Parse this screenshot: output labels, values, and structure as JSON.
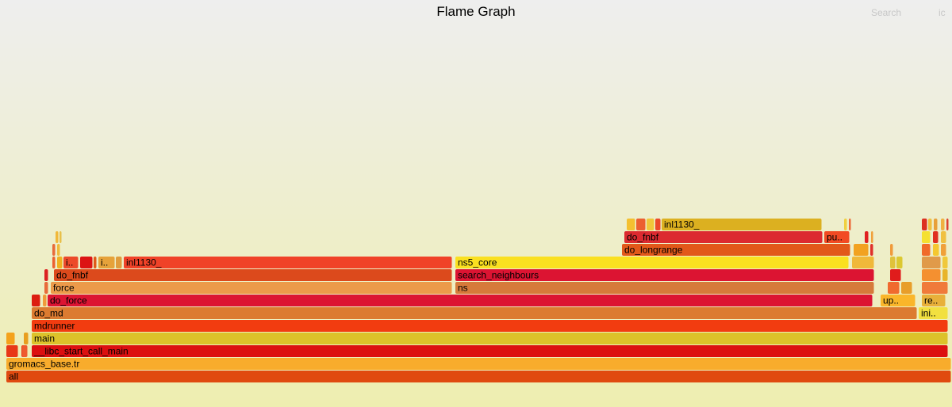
{
  "header": {
    "title": "Flame Graph",
    "search_label": "Search",
    "ic_label": "ic"
  },
  "colors": {
    "background_top": "#eeeeee",
    "background_bottom": "#eeeeb0"
  },
  "chart_data": {
    "type": "flamegraph",
    "x_unit": "fraction of total samples",
    "frames": [
      {
        "name": "all",
        "label": "all",
        "depth": 0,
        "start": 0.0067,
        "width": 0.9925,
        "color": "#e04a10"
      },
      {
        "name": "gromacs_base.tr",
        "label": "gromacs_base.tr",
        "depth": 1,
        "start": 0.0067,
        "width": 0.9925,
        "color": "#f8ac2c"
      },
      {
        "name": "frame-d2-a",
        "label": "",
        "depth": 2,
        "start": 0.0067,
        "width": 0.0125,
        "color": "#e83818"
      },
      {
        "name": "frame-d2-b",
        "label": "",
        "depth": 2,
        "start": 0.0225,
        "width": 0.0058,
        "color": "#e83818"
      },
      {
        "name": "frame-d2-c",
        "label": "",
        "depth": 2,
        "start": 0.0233,
        "width": 0.0058,
        "color": "#ee5a30"
      },
      {
        "name": "__libc_start_call_main",
        "label": "__libc_start_call_main",
        "depth": 2,
        "start": 0.0333,
        "width": 0.9625,
        "color": "#dc1010"
      },
      {
        "name": "frame-d3-a",
        "label": "",
        "depth": 3,
        "start": 0.0067,
        "width": 0.0092,
        "color": "#f4a21c"
      },
      {
        "name": "frame-d3-b",
        "label": "",
        "depth": 3,
        "start": 0.025,
        "width": 0.005,
        "color": "#e89e20"
      },
      {
        "name": "main",
        "label": "main",
        "depth": 3,
        "start": 0.0333,
        "width": 0.9625,
        "color": "#dcc22a"
      },
      {
        "name": "mdrunner",
        "label": "mdrunner",
        "depth": 4,
        "start": 0.0333,
        "width": 0.9625,
        "color": "#f23c10"
      },
      {
        "name": "do_md",
        "label": "do_md",
        "depth": 5,
        "start": 0.0333,
        "width": 0.93,
        "color": "#dc7b30"
      },
      {
        "name": "ini..",
        "label": "ini..",
        "depth": 5,
        "start": 0.965,
        "width": 0.0308,
        "color": "#f2e040"
      },
      {
        "name": "frame-d6-a",
        "label": "",
        "depth": 6,
        "start": 0.0333,
        "width": 0.0092,
        "color": "#dc1e10"
      },
      {
        "name": "frame-d6-b",
        "label": "",
        "depth": 6,
        "start": 0.045,
        "width": 0.0042,
        "color": "#f09a3a"
      },
      {
        "name": "do_force",
        "label": "do_force",
        "depth": 6,
        "start": 0.05,
        "width": 0.8667,
        "color": "#dc1432"
      },
      {
        "name": "up..",
        "label": "up..",
        "depth": 6,
        "start": 0.925,
        "width": 0.0367,
        "color": "#fab62a"
      },
      {
        "name": "re..",
        "label": "re..",
        "depth": 6,
        "start": 0.9683,
        "width": 0.025,
        "color": "#e8b03a"
      },
      {
        "name": "frame-d7-a",
        "label": "",
        "depth": 7,
        "start": 0.0467,
        "width": 0.0042,
        "color": "#e86a3a"
      },
      {
        "name": "force",
        "label": "force",
        "depth": 7,
        "start": 0.0533,
        "width": 0.4217,
        "color": "#ec9a4a"
      },
      {
        "name": "ns",
        "label": "ns",
        "depth": 7,
        "start": 0.4783,
        "width": 0.44,
        "color": "#d67a3a"
      },
      {
        "name": "frame-d7-b",
        "label": "",
        "depth": 7,
        "start": 0.9325,
        "width": 0.0125,
        "color": "#f06a2e"
      },
      {
        "name": "frame-d7-c",
        "label": "",
        "depth": 7,
        "start": 0.9467,
        "width": 0.0117,
        "color": "#e89e2a"
      },
      {
        "name": "frame-d7-d",
        "label": "",
        "depth": 7,
        "start": 0.9683,
        "width": 0.0275,
        "color": "#f07a3a"
      },
      {
        "name": "frame-d8-a",
        "label": "",
        "depth": 8,
        "start": 0.0467,
        "width": 0.0042,
        "color": "#dc2020"
      },
      {
        "name": "do_fnbf",
        "label": "do_fnbf",
        "depth": 8,
        "start": 0.0567,
        "width": 0.4183,
        "color": "#dc4a1c"
      },
      {
        "name": "search_neighbours",
        "label": "search_neighbours",
        "depth": 8,
        "start": 0.4783,
        "width": 0.44,
        "color": "#dc1432"
      },
      {
        "name": "frame-d8-b",
        "label": "",
        "depth": 8,
        "start": 0.935,
        "width": 0.0117,
        "color": "#e01c1c"
      },
      {
        "name": "frame-d8-c",
        "label": "",
        "depth": 8,
        "start": 0.9683,
        "width": 0.02,
        "color": "#f49030"
      },
      {
        "name": "frame-d8-d",
        "label": "",
        "depth": 8,
        "start": 0.99,
        "width": 0.0058,
        "color": "#e8b42a"
      },
      {
        "name": "frame-d9-a",
        "label": "",
        "depth": 9,
        "start": 0.055,
        "width": 0.0033,
        "color": "#ec6030"
      },
      {
        "name": "frame-d9-b",
        "label": "",
        "depth": 9,
        "start": 0.06,
        "width": 0.0058,
        "color": "#f0b020"
      },
      {
        "name": "i..",
        "label": "i..",
        "depth": 9,
        "start": 0.0667,
        "width": 0.0158,
        "color": "#ec4a2a"
      },
      {
        "name": "frame-d9-c",
        "label": "",
        "depth": 9,
        "start": 0.0842,
        "width": 0.0133,
        "color": "#dc1414"
      },
      {
        "name": "frame-d9-d",
        "label": "",
        "depth": 9,
        "start": 0.0983,
        "width": 0.0033,
        "color": "#e05a1a"
      },
      {
        "name": "i..-2",
        "label": "i..",
        "depth": 9,
        "start": 0.1033,
        "width": 0.0175,
        "color": "#e6a23a"
      },
      {
        "name": "frame-d9-e",
        "label": "",
        "depth": 9,
        "start": 0.1217,
        "width": 0.0067,
        "color": "#e09c3c"
      },
      {
        "name": "inl1130_",
        "label": "inl1130_",
        "depth": 9,
        "start": 0.13,
        "width": 0.345,
        "color": "#f04228"
      },
      {
        "name": "ns5_core",
        "label": "ns5_core",
        "depth": 9,
        "start": 0.4783,
        "width": 0.4133,
        "color": "#fae020"
      },
      {
        "name": "frame-d9-f",
        "label": "",
        "depth": 9,
        "start": 0.895,
        "width": 0.0233,
        "color": "#f0b83a"
      },
      {
        "name": "frame-d9-g",
        "label": "",
        "depth": 9,
        "start": 0.935,
        "width": 0.0058,
        "color": "#e0c23a"
      },
      {
        "name": "frame-d9-h",
        "label": "",
        "depth": 9,
        "start": 0.9417,
        "width": 0.0067,
        "color": "#dcc830"
      },
      {
        "name": "frame-d9-i",
        "label": "",
        "depth": 9,
        "start": 0.9683,
        "width": 0.02,
        "color": "#e09a4a"
      },
      {
        "name": "frame-d9-j",
        "label": "",
        "depth": 9,
        "start": 0.99,
        "width": 0.0058,
        "color": "#f0c83a"
      },
      {
        "name": "frame-d10-a",
        "label": "",
        "depth": 10,
        "start": 0.055,
        "width": 0.0033,
        "color": "#e86a3a"
      },
      {
        "name": "frame-d10-b",
        "label": "",
        "depth": 10,
        "start": 0.06,
        "width": 0.0033,
        "color": "#f0ba3a"
      },
      {
        "name": "do_longrange",
        "label": "do_longrange",
        "depth": 10,
        "start": 0.6533,
        "width": 0.24,
        "color": "#e2581a"
      },
      {
        "name": "frame-d10-c",
        "label": "",
        "depth": 10,
        "start": 0.8967,
        "width": 0.0158,
        "color": "#f2a220"
      },
      {
        "name": "frame-d10-d",
        "label": "",
        "depth": 10,
        "start": 0.9142,
        "width": 0.0033,
        "color": "#e0302a"
      },
      {
        "name": "frame-d10-e",
        "label": "",
        "depth": 10,
        "start": 0.935,
        "width": 0.0033,
        "color": "#f09a3a"
      },
      {
        "name": "frame-d10-f",
        "label": "",
        "depth": 10,
        "start": 0.9683,
        "width": 0.0092,
        "color": "#f06a2a"
      },
      {
        "name": "frame-d10-g",
        "label": "",
        "depth": 10,
        "start": 0.98,
        "width": 0.0067,
        "color": "#f5c830"
      },
      {
        "name": "frame-d10-h",
        "label": "",
        "depth": 10,
        "start": 0.9883,
        "width": 0.0058,
        "color": "#f0a03a"
      },
      {
        "name": "frame-d11-a",
        "label": "",
        "depth": 11,
        "start": 0.0583,
        "width": 0.0033,
        "color": "#f0b83a"
      },
      {
        "name": "frame-d11-b",
        "label": "",
        "depth": 11,
        "start": 0.0625,
        "width": 0.0025,
        "color": "#e8c04a"
      },
      {
        "name": "do_fnbf-2",
        "label": "do_fnbf",
        "depth": 11,
        "start": 0.6558,
        "width": 0.2083,
        "color": "#dc2a30"
      },
      {
        "name": "pu..",
        "label": "pu..",
        "depth": 11,
        "start": 0.8658,
        "width": 0.0267,
        "color": "#f24a22"
      },
      {
        "name": "frame-d11-c",
        "label": "",
        "depth": 11,
        "start": 0.9083,
        "width": 0.0042,
        "color": "#e02020"
      },
      {
        "name": "frame-d11-d",
        "label": "",
        "depth": 11,
        "start": 0.915,
        "width": 0.0025,
        "color": "#f0a03a"
      },
      {
        "name": "frame-d11-e",
        "label": "",
        "depth": 11,
        "start": 0.9683,
        "width": 0.0092,
        "color": "#f5e030"
      },
      {
        "name": "frame-d11-f",
        "label": "",
        "depth": 11,
        "start": 0.98,
        "width": 0.0058,
        "color": "#e03020"
      },
      {
        "name": "frame-d11-g",
        "label": "",
        "depth": 11,
        "start": 0.9883,
        "width": 0.0058,
        "color": "#f0c040"
      },
      {
        "name": "frame-d12-a",
        "label": "",
        "depth": 12,
        "start": 0.6583,
        "width": 0.0092,
        "color": "#f4c030"
      },
      {
        "name": "frame-d12-b",
        "label": "",
        "depth": 12,
        "start": 0.6683,
        "width": 0.01,
        "color": "#ec6030"
      },
      {
        "name": "frame-d12-c",
        "label": "",
        "depth": 12,
        "start": 0.6792,
        "width": 0.0083,
        "color": "#f0c83a"
      },
      {
        "name": "frame-d12-d",
        "label": "",
        "depth": 12,
        "start": 0.6883,
        "width": 0.0058,
        "color": "#ec4a2a"
      },
      {
        "name": "inl1130_-2",
        "label": "inl1130_",
        "depth": 12,
        "start": 0.695,
        "width": 0.1683,
        "color": "#dcb020"
      },
      {
        "name": "frame-d12-e",
        "label": "",
        "depth": 12,
        "start": 0.8867,
        "width": 0.0033,
        "color": "#f0d040"
      },
      {
        "name": "frame-d12-f",
        "label": "",
        "depth": 12,
        "start": 0.8917,
        "width": 0.0025,
        "color": "#ec6a3a"
      },
      {
        "name": "frame-d12-g",
        "label": "",
        "depth": 12,
        "start": 0.9683,
        "width": 0.0058,
        "color": "#dc3020"
      },
      {
        "name": "frame-d12-h",
        "label": "",
        "depth": 12,
        "start": 0.975,
        "width": 0.0042,
        "color": "#f0c040"
      },
      {
        "name": "frame-d12-i",
        "label": "",
        "depth": 12,
        "start": 0.9808,
        "width": 0.0042,
        "color": "#e8a03a"
      },
      {
        "name": "frame-d12-j",
        "label": "",
        "depth": 12,
        "start": 0.9883,
        "width": 0.0042,
        "color": "#f0b040"
      },
      {
        "name": "frame-d12-k",
        "label": "",
        "depth": 12,
        "start": 0.9942,
        "width": 0.0025,
        "color": "#dc4030"
      }
    ]
  }
}
